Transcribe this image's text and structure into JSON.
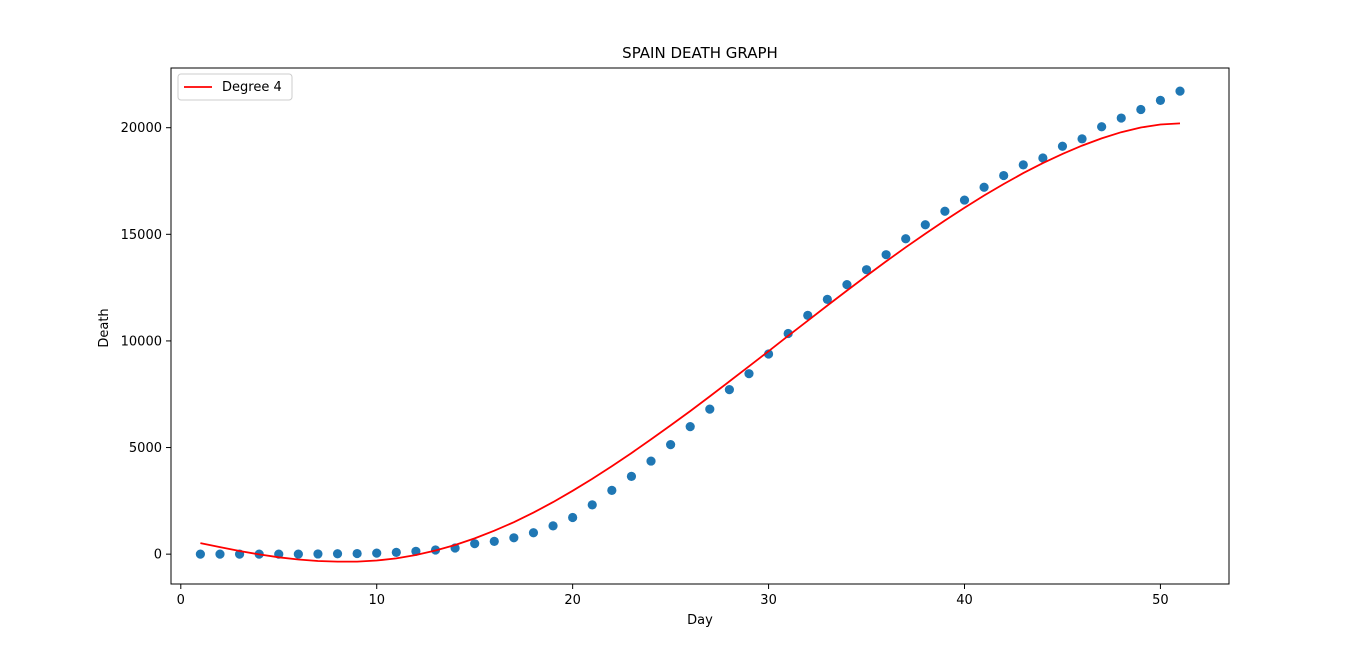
{
  "chart_data": {
    "type": "scatter",
    "title": "SPAIN DEATH GRAPH",
    "xlabel": "Day",
    "ylabel": "Death",
    "xlim": [
      -0.5,
      53.5
    ],
    "ylim": [
      -1400,
      22800
    ],
    "xticks": [
      0,
      10,
      20,
      30,
      40,
      50
    ],
    "yticks": [
      0,
      5000,
      10000,
      15000,
      20000
    ],
    "grid": false,
    "legend_position": "top-left",
    "colors": {
      "points": "#1f77b4",
      "fit": "#ff0000"
    },
    "series": [
      {
        "kind": "scatter",
        "x": [
          1,
          2,
          3,
          4,
          5,
          6,
          7,
          8,
          9,
          10,
          11,
          12,
          13,
          14,
          15,
          16,
          17,
          18,
          19,
          20,
          21,
          22,
          23,
          24,
          25,
          26,
          27,
          28,
          29,
          30,
          31,
          32,
          33,
          34,
          35,
          36,
          37,
          38,
          39,
          40,
          41,
          42,
          43,
          44,
          45,
          46,
          47,
          48,
          49,
          50,
          51
        ],
        "values": [
          0,
          0,
          0,
          0,
          0,
          0,
          10,
          17,
          28,
          49,
          84,
          133,
          195,
          289,
          491,
          598,
          767,
          1002,
          1326,
          1720,
          2311,
          2991,
          3647,
          4365,
          5138,
          5982,
          6803,
          7716,
          8464,
          9387,
          10348,
          11198,
          11947,
          12641,
          13341,
          14045,
          14792,
          15447,
          16081,
          16606,
          17209,
          17756,
          18255,
          18579,
          19130,
          19478,
          20043,
          20453,
          20852,
          21282,
          21717
        ]
      },
      {
        "kind": "line",
        "name": "Degree 4",
        "x": [
          1,
          2,
          3,
          4,
          5,
          6,
          7,
          8,
          9,
          10,
          11,
          12,
          13,
          14,
          15,
          16,
          17,
          18,
          19,
          20,
          21,
          22,
          23,
          24,
          25,
          26,
          27,
          28,
          29,
          30,
          31,
          32,
          33,
          34,
          35,
          36,
          37,
          38,
          39,
          40,
          41,
          42,
          43,
          44,
          45,
          46,
          47,
          48,
          49,
          50,
          51
        ],
        "values": [
          520,
          330,
          150,
          -10,
          -150,
          -250,
          -320,
          -350,
          -350,
          -300,
          -200,
          -40,
          170,
          430,
          740,
          1100,
          1500,
          1950,
          2440,
          2970,
          3530,
          4120,
          4740,
          5380,
          6040,
          6710,
          7400,
          8100,
          8810,
          9520,
          10240,
          10950,
          11660,
          12360,
          13050,
          13730,
          14390,
          15030,
          15650,
          16250,
          16820,
          17360,
          17870,
          18340,
          18770,
          19160,
          19500,
          19790,
          20010,
          20150,
          20200
        ]
      }
    ]
  }
}
